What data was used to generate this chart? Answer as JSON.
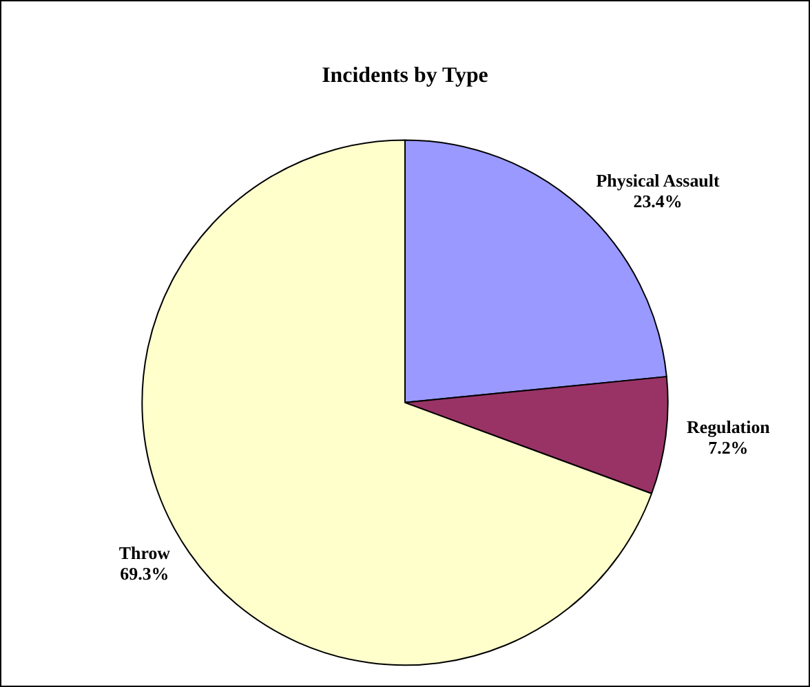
{
  "chart_data": {
    "type": "pie",
    "title": "Incidents by Type",
    "categories": [
      "Physical Assault",
      "Regulation",
      "Throw"
    ],
    "values": [
      23.4,
      7.2,
      69.3
    ],
    "value_labels": [
      "23.4%",
      "7.2%",
      "69.3%"
    ],
    "colors": [
      "#9999ff",
      "#993366",
      "#ffffcc"
    ],
    "legend": false
  }
}
